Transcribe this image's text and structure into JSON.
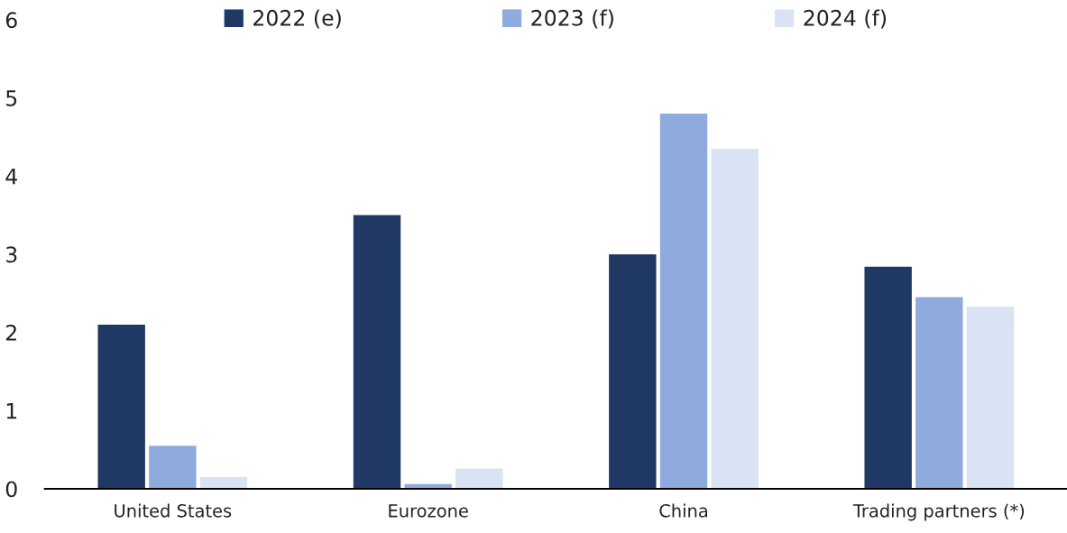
{
  "chart_data": {
    "type": "bar",
    "categories": [
      "United States",
      "Eurozone",
      "China",
      "Trading partners (*)"
    ],
    "series": [
      {
        "name": "2022 (e)",
        "color": "#203864",
        "values": [
          2.1,
          3.5,
          3.0,
          2.84
        ]
      },
      {
        "name": "2023 (f)",
        "color": "#8faadc",
        "values": [
          0.55,
          0.06,
          4.8,
          2.45
        ]
      },
      {
        "name": "2024 (f)",
        "color": "#dae3f3",
        "values": [
          0.15,
          0.26,
          4.35,
          2.33
        ]
      }
    ],
    "ylim": [
      0,
      6
    ],
    "yticks": [
      0,
      1,
      2,
      3,
      4,
      5,
      6
    ],
    "grid": false,
    "legend": "top"
  }
}
